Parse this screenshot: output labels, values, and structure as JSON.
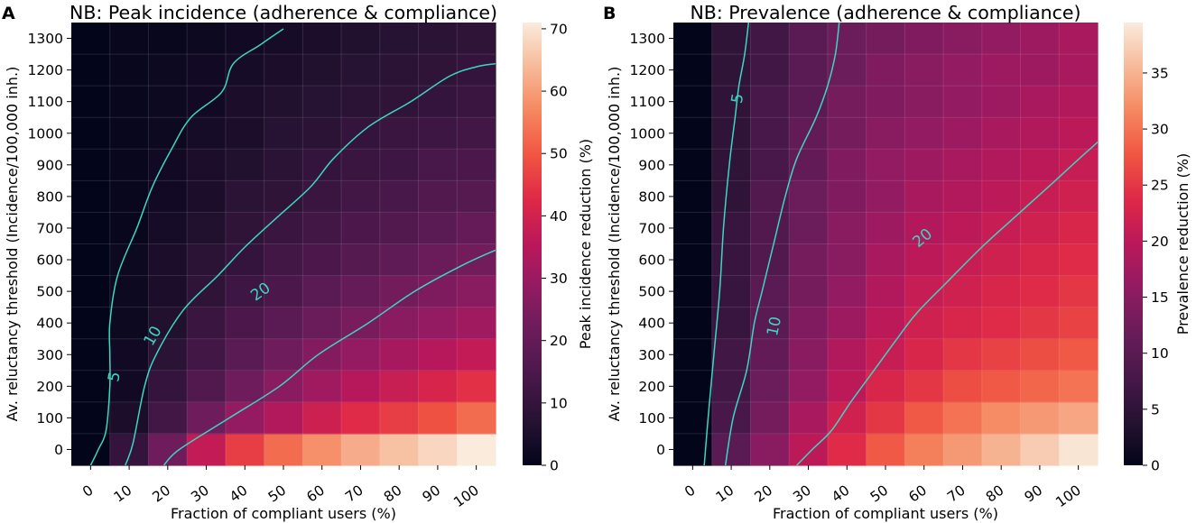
{
  "chart_data": [
    {
      "panel_letter": "A",
      "type": "heatmap",
      "title": "NB: Peak incidence (adherence & compliance)",
      "xlabel": "Fraction of compliant users (%)",
      "ylabel": "Av. reluctancy threshold (Incidence/100,000 inh.)",
      "x": [
        0,
        10,
        20,
        30,
        40,
        50,
        60,
        70,
        80,
        90,
        100
      ],
      "y": [
        0,
        100,
        200,
        300,
        400,
        500,
        600,
        700,
        800,
        900,
        1000,
        1100,
        1200,
        1300
      ],
      "z_rows_from_y0": [
        [
          0,
          10,
          22,
          37,
          46,
          53,
          58,
          62,
          65,
          68,
          71
        ],
        [
          0,
          5,
          13,
          22,
          29,
          34,
          39,
          43,
          46,
          49,
          53
        ],
        [
          0,
          3,
          10,
          16,
          22,
          27,
          31,
          35,
          38,
          41,
          44
        ],
        [
          0,
          3,
          8,
          13,
          18,
          22,
          26,
          29,
          32,
          35,
          37
        ],
        [
          0,
          2,
          6,
          11,
          15,
          18,
          21,
          24,
          27,
          29,
          31
        ],
        [
          0,
          2,
          5,
          9,
          12,
          15,
          18,
          20,
          23,
          25,
          27
        ],
        [
          0,
          2,
          5,
          8,
          10,
          13,
          15,
          17,
          19,
          21,
          23
        ],
        [
          0,
          1,
          4,
          6,
          9,
          11,
          13,
          15,
          16,
          18,
          20
        ],
        [
          0,
          1,
          3,
          5,
          8,
          9,
          11,
          13,
          14,
          16,
          17
        ],
        [
          0,
          1,
          3,
          5,
          6,
          8,
          10,
          11,
          12,
          14,
          15
        ],
        [
          0,
          1,
          2,
          4,
          5,
          7,
          8,
          10,
          11,
          12,
          13
        ],
        [
          0,
          1,
          2,
          3,
          5,
          6,
          7,
          8,
          9,
          10,
          11
        ],
        [
          0,
          1,
          2,
          3,
          4,
          5,
          6,
          7,
          8,
          9,
          10
        ],
        [
          0,
          1,
          1,
          2,
          3,
          4,
          5,
          6,
          7,
          8,
          9
        ]
      ],
      "colorbar": {
        "label": "Peak incidence reduction (%)",
        "range": [
          0,
          71
        ],
        "ticks": [
          0,
          10,
          20,
          30,
          40,
          50,
          60,
          70
        ]
      },
      "contours": [
        {
          "level": 5,
          "points": [
            [
              0,
              -0.5
            ],
            [
              0.2,
              0
            ],
            [
              0.4,
              0.6
            ],
            [
              0.5,
              2
            ],
            [
              0.5,
              3
            ],
            [
              0.5,
              4
            ],
            [
              0.7,
              5.5
            ],
            [
              1.2,
              7
            ],
            [
              1.6,
              8.3
            ],
            [
              2.1,
              9.5
            ],
            [
              2.6,
              10.5
            ],
            [
              3.4,
              11.3
            ],
            [
              3.7,
              12.2
            ],
            [
              4.4,
              12.8
            ],
            [
              5,
              13.3
            ]
          ]
        },
        {
          "level": 10,
          "points": [
            [
              0.9,
              -0.5
            ],
            [
              1.1,
              0.2
            ],
            [
              1.4,
              2
            ],
            [
              1.7,
              3
            ],
            [
              2.4,
              4.4
            ],
            [
              3.3,
              5.5
            ],
            [
              4,
              6.4
            ],
            [
              4.8,
              7.3
            ],
            [
              5.7,
              8.3
            ],
            [
              6.3,
              9.2
            ],
            [
              7.2,
              10.2
            ],
            [
              8.3,
              11
            ],
            [
              9.3,
              11.8
            ],
            [
              10,
              12.1
            ],
            [
              10.5,
              12.2
            ]
          ]
        },
        {
          "level": 20,
          "points": [
            [
              1.9,
              -0.5
            ],
            [
              2.3,
              0
            ],
            [
              3.6,
              1
            ],
            [
              4.9,
              2
            ],
            [
              5.9,
              3
            ],
            [
              7.2,
              4
            ],
            [
              8.4,
              5
            ],
            [
              9.6,
              5.8
            ],
            [
              10.5,
              6.3
            ],
            [
              11.5,
              6.75
            ]
          ]
        }
      ]
    },
    {
      "panel_letter": "B",
      "type": "heatmap",
      "title": "NB: Prevalence (adherence & compliance)",
      "xlabel": "Fraction of compliant users (%)",
      "ylabel": "Av. reluctancy threshold (Incidence/100,000 inh.)",
      "x": [
        0,
        10,
        20,
        30,
        40,
        50,
        60,
        70,
        80,
        90,
        100
      ],
      "y": [
        0,
        100,
        200,
        300,
        400,
        500,
        600,
        700,
        800,
        900,
        1000,
        1100,
        1200,
        1300
      ],
      "z_rows_from_y0": [
        [
          0,
          10,
          15,
          20,
          24,
          28,
          31,
          33,
          35,
          37,
          39
        ],
        [
          0,
          8,
          13,
          18,
          22,
          25,
          28,
          30,
          32,
          33,
          34
        ],
        [
          0,
          7,
          12,
          16,
          20,
          23,
          25,
          27,
          28,
          29,
          30
        ],
        [
          0,
          7,
          11,
          15,
          19,
          21,
          23,
          25,
          26,
          27,
          28
        ],
        [
          0,
          6,
          10,
          14,
          17,
          20,
          22,
          23,
          24,
          25,
          26
        ],
        [
          0,
          6,
          10,
          13,
          16,
          19,
          21,
          22,
          23,
          24,
          25
        ],
        [
          0,
          6,
          9,
          13,
          15,
          18,
          20,
          21,
          22,
          23,
          24
        ],
        [
          0,
          6,
          9,
          12,
          15,
          17,
          19,
          20,
          21,
          22,
          23
        ],
        [
          0,
          5,
          9,
          12,
          14,
          16,
          18,
          19,
          20,
          21,
          22
        ],
        [
          0,
          5,
          8,
          11,
          14,
          16,
          17,
          18,
          19,
          20,
          21
        ],
        [
          0,
          5,
          8,
          11,
          13,
          15,
          16,
          17,
          18,
          19,
          20
        ],
        [
          0,
          5,
          8,
          10,
          13,
          14,
          15,
          16,
          17,
          18,
          19
        ],
        [
          0,
          5,
          7,
          10,
          12,
          14,
          15,
          16,
          17,
          17,
          18
        ],
        [
          0,
          5,
          7,
          10,
          12,
          13,
          14,
          15,
          16,
          17,
          18
        ]
      ],
      "colorbar": {
        "label": "Prevalence reduction (%)",
        "range": [
          0,
          39.5
        ],
        "ticks": [
          0,
          5,
          10,
          15,
          20,
          25,
          30,
          35
        ]
      },
      "contours": [
        {
          "level": 5,
          "points": [
            [
              0.3,
              -0.5
            ],
            [
              0.4,
              1
            ],
            [
              0.55,
              3
            ],
            [
              0.7,
              5
            ],
            [
              0.8,
              7
            ],
            [
              0.95,
              9
            ],
            [
              1.1,
              10.5
            ],
            [
              1.2,
              11.5
            ],
            [
              1.35,
              12.5
            ],
            [
              1.45,
              13.5
            ]
          ]
        },
        {
          "level": 10,
          "points": [
            [
              0.85,
              -0.5
            ],
            [
              1.05,
              1
            ],
            [
              1.4,
              2.5
            ],
            [
              1.6,
              4
            ],
            [
              1.8,
              5
            ],
            [
              2.1,
              6.5
            ],
            [
              2.4,
              8
            ],
            [
              2.7,
              9.2
            ],
            [
              3.2,
              10.5
            ],
            [
              3.5,
              11.5
            ],
            [
              3.7,
              12.5
            ],
            [
              3.8,
              13.5
            ]
          ]
        },
        {
          "level": 20,
          "points": [
            [
              2.7,
              -0.5
            ],
            [
              3.1,
              0
            ],
            [
              3.6,
              0.6
            ],
            [
              4.1,
              1.5
            ],
            [
              4.7,
              2.5
            ],
            [
              5.3,
              3.5
            ],
            [
              5.8,
              4.3
            ],
            [
              6.6,
              5.3
            ],
            [
              7.5,
              6.4
            ],
            [
              8.4,
              7.4
            ],
            [
              9.4,
              8.5
            ],
            [
              10.3,
              9.5
            ],
            [
              10.9,
              10.1
            ],
            [
              11.5,
              10.35
            ]
          ]
        }
      ]
    }
  ]
}
